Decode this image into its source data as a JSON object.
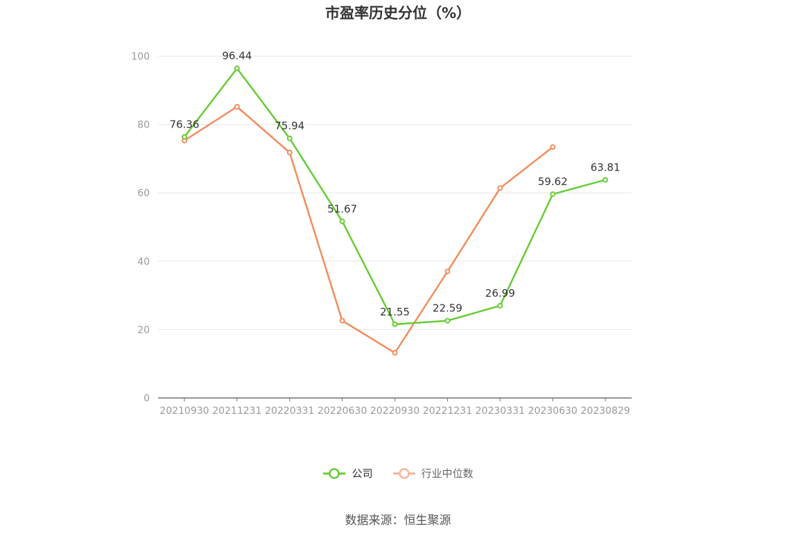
{
  "source_text": "数据来源：恒生聚源",
  "colors": {
    "company": "#66cc33",
    "industry": "#f28c5c",
    "grid": "#e6e6e6",
    "axis": "#999999"
  },
  "chart_data": {
    "type": "line",
    "title": "市盈率历史分位（%）",
    "xlabel": "",
    "ylabel": "",
    "categories": [
      "20210930",
      "20211231",
      "20220331",
      "20220630",
      "20220930",
      "20221231",
      "20230331",
      "20230630",
      "20230829"
    ],
    "y_ticks": [
      0,
      20,
      40,
      60,
      80,
      100
    ],
    "ylim": [
      0,
      100
    ],
    "grid": true,
    "legend_position": "bottom",
    "series": [
      {
        "name": "公司",
        "values": [
          76.36,
          96.44,
          75.94,
          51.67,
          21.55,
          22.59,
          26.99,
          59.62,
          63.81
        ],
        "show_labels": true
      },
      {
        "name": "行业中位数",
        "values": [
          75.3,
          85.2,
          71.8,
          22.6,
          13.2,
          37.0,
          61.4,
          73.4,
          null
        ],
        "show_labels": false
      }
    ]
  }
}
